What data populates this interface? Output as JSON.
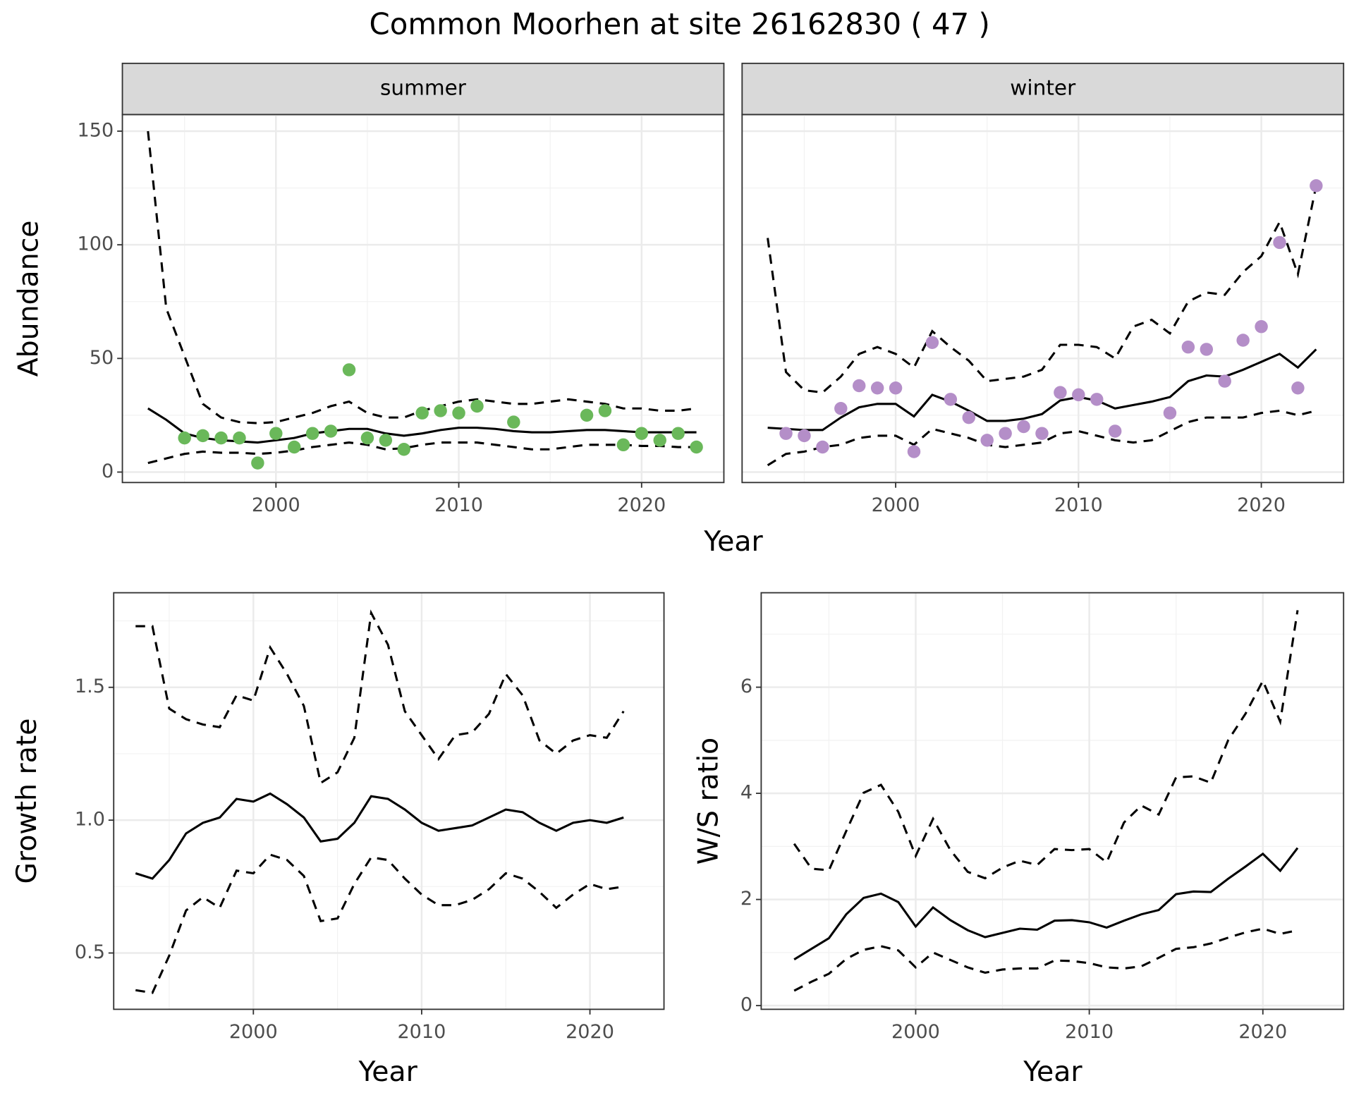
{
  "title": "Common Moorhen at site 26162830 ( 47 )",
  "chart_data": [
    {
      "type": "line",
      "strip": "summer",
      "xlabel": "Year",
      "ylabel": "Abundance",
      "x": [
        1993,
        1994,
        1995,
        1996,
        1997,
        1998,
        1999,
        2000,
        2001,
        2002,
        2003,
        2004,
        2005,
        2006,
        2007,
        2008,
        2009,
        2010,
        2011,
        2012,
        2013,
        2014,
        2015,
        2016,
        2017,
        2018,
        2019,
        2020,
        2021,
        2022,
        2023
      ],
      "series": [
        {
          "color": "#000000",
          "dashed": false,
          "values": [
            28,
            23,
            17,
            15,
            14,
            13.5,
            13,
            14,
            15,
            17,
            18,
            19,
            19,
            17,
            16,
            17,
            18.5,
            19.5,
            19.5,
            19,
            18,
            17.5,
            17.5,
            18,
            18.5,
            18.5,
            18,
            17.5,
            17.5,
            17.5,
            17.5
          ]
        },
        {
          "color": "#000000",
          "dashed": true,
          "values": [
            150,
            72,
            51,
            30,
            24,
            22,
            21.5,
            22,
            24,
            26,
            29,
            31,
            26,
            24,
            24,
            27,
            29,
            31,
            32,
            31,
            30,
            30,
            31,
            32,
            31,
            30,
            28,
            28,
            27,
            27,
            28
          ]
        },
        {
          "color": "#000000",
          "dashed": true,
          "values": [
            4,
            6,
            8,
            9,
            8.5,
            8.5,
            8,
            8.5,
            9.5,
            11,
            12,
            13,
            12,
            10,
            10.5,
            12,
            13,
            13,
            13,
            12,
            11,
            10,
            10,
            11,
            12,
            12,
            12,
            11.5,
            11.5,
            11,
            11
          ]
        }
      ],
      "points": {
        "color": "#6ab85a",
        "x": [
          1995,
          1996,
          1997,
          1998,
          1999,
          2000,
          2001,
          2002,
          2003,
          2004,
          2005,
          2006,
          2007,
          2008,
          2009,
          2010,
          2011,
          2013,
          2017,
          2018,
          2019,
          2020,
          2021,
          2022,
          2023
        ],
        "values": [
          15,
          16,
          15,
          15,
          4,
          17,
          11,
          17,
          18,
          45,
          15,
          14,
          10,
          26,
          27,
          26,
          29,
          22,
          25,
          27,
          12,
          17,
          14,
          17,
          11
        ]
      },
      "xlim": [
        1991.6,
        2024.5
      ],
      "ylim": [
        -4.6,
        157.3
      ],
      "xticks": [
        2000,
        2010,
        2020
      ],
      "yticks": [
        0,
        50,
        100,
        150
      ],
      "grid": true
    },
    {
      "type": "line",
      "strip": "winter",
      "sharey": true,
      "x": [
        1993,
        1994,
        1995,
        1996,
        1997,
        1998,
        1999,
        2000,
        2001,
        2002,
        2003,
        2004,
        2005,
        2006,
        2007,
        2008,
        2009,
        2010,
        2011,
        2012,
        2013,
        2014,
        2015,
        2016,
        2017,
        2018,
        2019,
        2020,
        2021,
        2022,
        2023
      ],
      "series": [
        {
          "color": "#000000",
          "dashed": false,
          "values": [
            19.5,
            19,
            18.5,
            18.5,
            24,
            28.5,
            30,
            30,
            24.5,
            34,
            31,
            27,
            22.5,
            22.5,
            23.5,
            25.5,
            31.5,
            33,
            31.5,
            28,
            29.5,
            31,
            33,
            40,
            42.5,
            42,
            45,
            48.5,
            52,
            46,
            54
          ]
        },
        {
          "color": "#000000",
          "dashed": true,
          "values": [
            103,
            44,
            36,
            35,
            42,
            52,
            55,
            52,
            46,
            62,
            55,
            49,
            40,
            41,
            42,
            45,
            56,
            56,
            55,
            50,
            64,
            67,
            61,
            75,
            79,
            78,
            88,
            95,
            110,
            87,
            126
          ]
        },
        {
          "color": "#000000",
          "dashed": true,
          "values": [
            3,
            8,
            9,
            11,
            12,
            15,
            16,
            16,
            12,
            19,
            17,
            15,
            12,
            11,
            12,
            13,
            17,
            18,
            16,
            14,
            13,
            14,
            18,
            22,
            24,
            24,
            24,
            26,
            27,
            25,
            27
          ]
        }
      ],
      "points": {
        "color": "#b48ec8",
        "x": [
          1994,
          1995,
          1996,
          1997,
          1998,
          1999,
          2000,
          2001,
          2002,
          2003,
          2004,
          2005,
          2006,
          2007,
          2008,
          2009,
          2010,
          2011,
          2012,
          2015,
          2016,
          2017,
          2018,
          2019,
          2020,
          2021,
          2022,
          2023
        ],
        "values": [
          17,
          16,
          11,
          28,
          38,
          37,
          37,
          9,
          57,
          32,
          24,
          14,
          17,
          20,
          17,
          35,
          34,
          32,
          18,
          26,
          55,
          54,
          40,
          58,
          64,
          101,
          37,
          126
        ]
      },
      "xlim": [
        1991.6,
        2024.5
      ],
      "xticks": [
        2000,
        2010,
        2020
      ],
      "grid": true
    },
    {
      "type": "line",
      "xlabel": "Year",
      "ylabel": "Growth rate",
      "x": [
        1993,
        1994,
        1995,
        1996,
        1997,
        1998,
        1999,
        2000,
        2001,
        2002,
        2003,
        2004,
        2005,
        2006,
        2007,
        2008,
        2009,
        2010,
        2011,
        2012,
        2013,
        2014,
        2015,
        2016,
        2017,
        2018,
        2019,
        2020,
        2021,
        2022
      ],
      "series": [
        {
          "color": "#000000",
          "dashed": false,
          "values": [
            0.8,
            0.78,
            0.85,
            0.95,
            0.99,
            1.01,
            1.08,
            1.07,
            1.1,
            1.06,
            1.01,
            0.92,
            0.93,
            0.99,
            1.09,
            1.08,
            1.04,
            0.99,
            0.96,
            0.97,
            0.98,
            1.01,
            1.04,
            1.03,
            0.99,
            0.96,
            0.99,
            1.0,
            0.99,
            1.01
          ]
        },
        {
          "color": "#000000",
          "dashed": true,
          "values": [
            1.73,
            1.73,
            1.42,
            1.38,
            1.36,
            1.35,
            1.47,
            1.45,
            1.65,
            1.55,
            1.43,
            1.14,
            1.18,
            1.31,
            1.78,
            1.66,
            1.41,
            1.32,
            1.23,
            1.32,
            1.33,
            1.4,
            1.55,
            1.47,
            1.3,
            1.25,
            1.3,
            1.32,
            1.31,
            1.41
          ]
        },
        {
          "color": "#000000",
          "dashed": true,
          "values": [
            0.36,
            0.35,
            0.49,
            0.66,
            0.71,
            0.67,
            0.81,
            0.8,
            0.87,
            0.85,
            0.79,
            0.62,
            0.63,
            0.76,
            0.86,
            0.85,
            0.78,
            0.72,
            0.68,
            0.68,
            0.7,
            0.74,
            0.8,
            0.78,
            0.73,
            0.67,
            0.72,
            0.76,
            0.74,
            0.75
          ]
        }
      ],
      "xlim": [
        1991.7,
        2024.4
      ],
      "ylim": [
        0.288,
        1.856
      ],
      "xticks": [
        2000,
        2010,
        2020
      ],
      "yticks": [
        0.5,
        {
          "value": 1,
          "label": "1.0"
        },
        1.5
      ],
      "grid": true
    },
    {
      "type": "line",
      "xlabel": "Year",
      "ylabel": "W/S ratio",
      "x": [
        1993,
        1994,
        1995,
        1996,
        1997,
        1998,
        1999,
        2000,
        2001,
        2002,
        2003,
        2004,
        2005,
        2006,
        2007,
        2008,
        2009,
        2010,
        2011,
        2012,
        2013,
        2014,
        2015,
        2016,
        2017,
        2018,
        2019,
        2020,
        2021,
        2022
      ],
      "series": [
        {
          "color": "#000000",
          "dashed": false,
          "values": [
            0.87,
            1.07,
            1.27,
            1.72,
            2.03,
            2.11,
            1.95,
            1.49,
            1.85,
            1.61,
            1.42,
            1.29,
            1.37,
            1.45,
            1.43,
            1.6,
            1.61,
            1.57,
            1.47,
            1.6,
            1.72,
            1.8,
            2.1,
            2.15,
            2.14,
            2.39,
            2.62,
            2.86,
            2.54,
            2.97
          ]
        },
        {
          "color": "#000000",
          "dashed": true,
          "values": [
            3.05,
            2.58,
            2.55,
            3.29,
            4.01,
            4.16,
            3.65,
            2.82,
            3.52,
            2.93,
            2.52,
            2.4,
            2.6,
            2.73,
            2.65,
            2.95,
            2.93,
            2.95,
            2.7,
            3.45,
            3.77,
            3.6,
            4.3,
            4.32,
            4.2,
            5.0,
            5.5,
            6.12,
            5.35,
            7.45
          ]
        },
        {
          "color": "#000000",
          "dashed": true,
          "values": [
            0.28,
            0.45,
            0.6,
            0.88,
            1.05,
            1.12,
            1.04,
            0.72,
            1.0,
            0.86,
            0.72,
            0.62,
            0.68,
            0.7,
            0.7,
            0.85,
            0.84,
            0.8,
            0.72,
            0.7,
            0.74,
            0.9,
            1.07,
            1.1,
            1.17,
            1.28,
            1.38,
            1.45,
            1.35,
            1.42
          ]
        }
      ],
      "xlim": [
        1991.1,
        2024.65
      ],
      "ylim": [
        -0.07,
        7.78
      ],
      "xticks": [
        2000,
        2010,
        2020
      ],
      "yticks": [
        0,
        2,
        4,
        6
      ],
      "grid": true
    }
  ]
}
